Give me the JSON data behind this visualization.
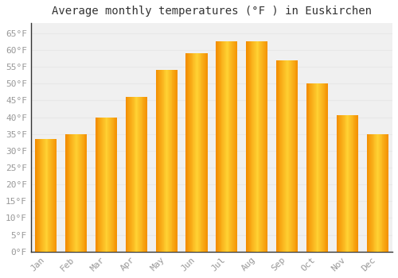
{
  "title": "Average monthly temperatures (°F ) in Euskirchen",
  "months": [
    "Jan",
    "Feb",
    "Mar",
    "Apr",
    "May",
    "Jun",
    "Jul",
    "Aug",
    "Sep",
    "Oct",
    "Nov",
    "Dec"
  ],
  "values": [
    33.5,
    35.0,
    40.0,
    46.0,
    54.0,
    59.0,
    62.5,
    62.5,
    57.0,
    50.0,
    40.5,
    35.0
  ],
  "bar_color_center": "#FFB300",
  "bar_color_edge": "#F07800",
  "bar_color_highlight": "#FFD966",
  "ylim": [
    0,
    68
  ],
  "yticks": [
    0,
    5,
    10,
    15,
    20,
    25,
    30,
    35,
    40,
    45,
    50,
    55,
    60,
    65
  ],
  "ytick_labels": [
    "0°F",
    "5°F",
    "10°F",
    "15°F",
    "20°F",
    "25°F",
    "30°F",
    "35°F",
    "40°F",
    "45°F",
    "50°F",
    "55°F",
    "60°F",
    "65°F"
  ],
  "background_color": "#ffffff",
  "plot_bg_color": "#f0f0f0",
  "grid_color": "#e8e8e8",
  "title_fontsize": 10,
  "tick_fontsize": 8,
  "font_family": "monospace",
  "axis_color": "#999999",
  "spine_color": "#333333"
}
